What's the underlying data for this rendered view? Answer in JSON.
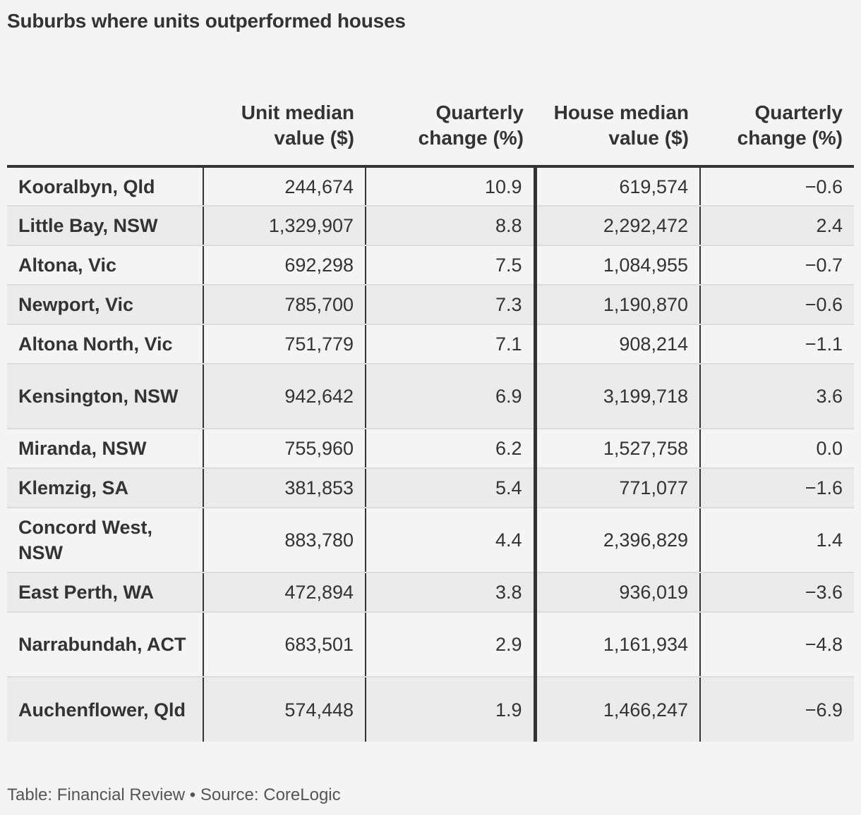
{
  "title": "Suburbs where units outperformed houses",
  "footer": "Table: Financial Review • Source: CoreLogic",
  "colors": {
    "background": "#f4f4f4",
    "row_alt": "#ebebeb",
    "rule": "#333333"
  },
  "chart_data": {
    "type": "table",
    "title": "Suburbs where units outperformed houses",
    "columns": [
      "",
      "Unit median value ($)",
      "Quarterly change (%)",
      "House median value ($)",
      "Quarterly change (%)"
    ],
    "rows": [
      [
        "Kooralbyn, Qld",
        "244,674",
        "10.9",
        "619,574",
        "−0.6"
      ],
      [
        "Little Bay, NSW",
        "1,329,907",
        "8.8",
        "2,292,472",
        "2.4"
      ],
      [
        "Altona, Vic",
        "692,298",
        "7.5",
        "1,084,955",
        "−0.7"
      ],
      [
        "Newport, Vic",
        "785,700",
        "7.3",
        "1,190,870",
        "−0.6"
      ],
      [
        "Altona North, Vic",
        "751,779",
        "7.1",
        "908,214",
        "−1.1"
      ],
      [
        "Kensington, NSW",
        "942,642",
        "6.9",
        "3,199,718",
        "3.6"
      ],
      [
        "Miranda, NSW",
        "755,960",
        "6.2",
        "1,527,758",
        "0.0"
      ],
      [
        "Klemzig, SA",
        "381,853",
        "5.4",
        "771,077",
        "−1.6"
      ],
      [
        "Concord West, NSW",
        "883,780",
        "4.4",
        "2,396,829",
        "1.4"
      ],
      [
        "East Perth, WA",
        "472,894",
        "3.8",
        "936,019",
        "−3.6"
      ],
      [
        "Narrabundah, ACT",
        "683,501",
        "2.9",
        "1,161,934",
        "−4.8"
      ],
      [
        "Auchenflower, Qld",
        "574,448",
        "1.9",
        "1,466,247",
        "−6.9"
      ]
    ],
    "source": "CoreLogic"
  }
}
